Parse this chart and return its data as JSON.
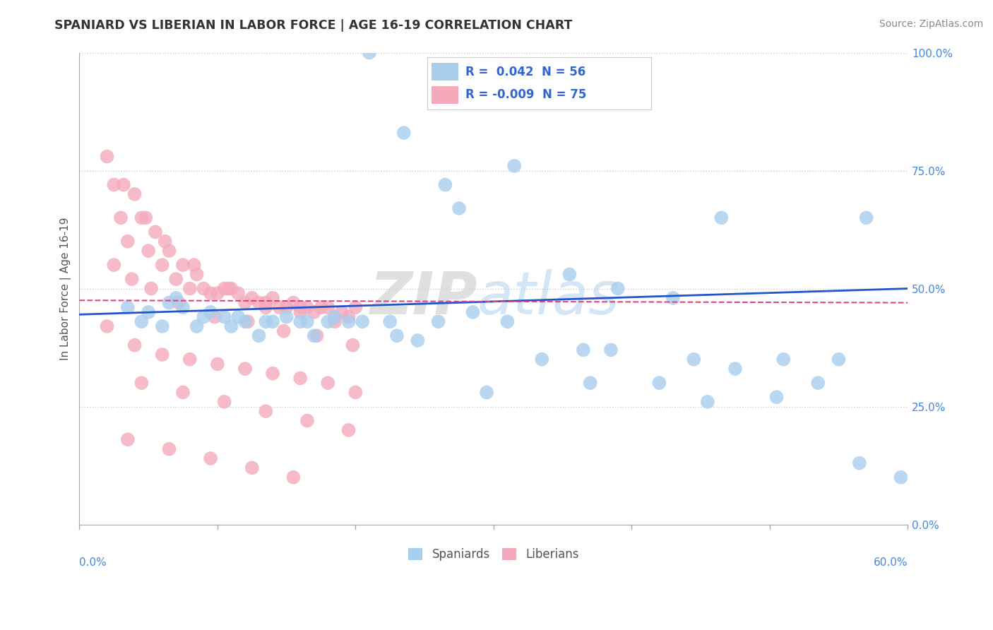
{
  "title": "SPANIARD VS LIBERIAN IN LABOR FORCE | AGE 16-19 CORRELATION CHART",
  "source_text": "Source: ZipAtlas.com",
  "ylabel": "In Labor Force | Age 16-19",
  "xlim": [
    0.0,
    60.0
  ],
  "ylim": [
    0.0,
    100.0
  ],
  "yticks": [
    0.0,
    25.0,
    50.0,
    75.0,
    100.0
  ],
  "xticks": [
    0.0,
    10.0,
    20.0,
    30.0,
    40.0,
    50.0,
    60.0
  ],
  "blue_color": "#A8CEED",
  "pink_color": "#F4AABB",
  "blue_line_color": "#2255CC",
  "pink_line_color": "#DD4488",
  "legend_r_blue": "0.042",
  "legend_n_blue": "56",
  "legend_r_pink": "-0.009",
  "legend_n_pink": "75",
  "legend_label_blue": "Spaniards",
  "legend_label_pink": "Liberians",
  "watermark_zip": "ZIP",
  "watermark_atlas": "atlas",
  "background_color": "#FFFFFF",
  "grid_color": "#CCCCCC",
  "tick_color_y": "#4488DD",
  "tick_color_x": "#888888",
  "blue_x": [
    21.0,
    23.5,
    26.5,
    27.5,
    31.5,
    35.5,
    39.0,
    43.0,
    46.5,
    51.0,
    55.0,
    57.0,
    3.5,
    5.0,
    6.5,
    7.5,
    9.0,
    10.5,
    12.0,
    13.5,
    15.0,
    16.5,
    18.0,
    19.5,
    7.0,
    9.5,
    11.5,
    14.0,
    16.0,
    18.5,
    20.5,
    22.5,
    24.5,
    26.0,
    28.5,
    31.0,
    33.5,
    36.5,
    38.5,
    42.0,
    44.5,
    47.5,
    50.5,
    53.5,
    56.5,
    59.5,
    4.5,
    6.0,
    8.5,
    11.0,
    13.0,
    17.0,
    23.0,
    29.5,
    37.0,
    45.5
  ],
  "blue_y": [
    100.0,
    83.0,
    72.0,
    67.0,
    76.0,
    53.0,
    50.0,
    48.0,
    65.0,
    35.0,
    35.0,
    65.0,
    46.0,
    45.0,
    47.0,
    46.0,
    44.0,
    44.0,
    43.0,
    43.0,
    44.0,
    43.0,
    43.0,
    43.0,
    48.0,
    45.0,
    44.0,
    43.0,
    43.0,
    44.0,
    43.0,
    43.0,
    39.0,
    43.0,
    45.0,
    43.0,
    35.0,
    37.0,
    37.0,
    30.0,
    35.0,
    33.0,
    27.0,
    30.0,
    13.0,
    10.0,
    43.0,
    42.0,
    42.0,
    42.0,
    40.0,
    40.0,
    40.0,
    28.0,
    30.0,
    26.0
  ],
  "pink_x": [
    2.0,
    2.5,
    3.0,
    3.5,
    4.0,
    4.5,
    5.0,
    5.5,
    6.0,
    6.5,
    7.0,
    7.5,
    8.0,
    8.5,
    9.0,
    9.5,
    10.0,
    10.5,
    11.0,
    11.5,
    12.0,
    12.5,
    13.0,
    13.5,
    14.0,
    14.5,
    15.0,
    15.5,
    16.0,
    16.5,
    17.0,
    17.5,
    18.0,
    18.5,
    19.0,
    19.5,
    20.0,
    3.2,
    4.8,
    6.2,
    8.3,
    10.8,
    13.5,
    16.0,
    18.5,
    2.5,
    3.8,
    5.2,
    7.2,
    9.8,
    12.2,
    14.8,
    17.2,
    19.8,
    2.0,
    4.0,
    6.0,
    8.0,
    10.0,
    12.0,
    14.0,
    16.0,
    18.0,
    20.0,
    4.5,
    7.5,
    10.5,
    13.5,
    16.5,
    19.5,
    3.5,
    6.5,
    9.5,
    12.5,
    15.5
  ],
  "pink_y": [
    78.0,
    72.0,
    65.0,
    60.0,
    70.0,
    65.0,
    58.0,
    62.0,
    55.0,
    58.0,
    52.0,
    55.0,
    50.0,
    53.0,
    50.0,
    49.0,
    49.0,
    50.0,
    50.0,
    49.0,
    47.0,
    48.0,
    47.0,
    46.0,
    48.0,
    46.0,
    46.0,
    47.0,
    46.0,
    46.0,
    45.0,
    46.0,
    46.0,
    44.0,
    45.0,
    44.0,
    46.0,
    72.0,
    65.0,
    60.0,
    55.0,
    50.0,
    47.0,
    45.0,
    43.0,
    55.0,
    52.0,
    50.0,
    47.0,
    44.0,
    43.0,
    41.0,
    40.0,
    38.0,
    42.0,
    38.0,
    36.0,
    35.0,
    34.0,
    33.0,
    32.0,
    31.0,
    30.0,
    28.0,
    30.0,
    28.0,
    26.0,
    24.0,
    22.0,
    20.0,
    18.0,
    16.0,
    14.0,
    12.0,
    10.0
  ]
}
